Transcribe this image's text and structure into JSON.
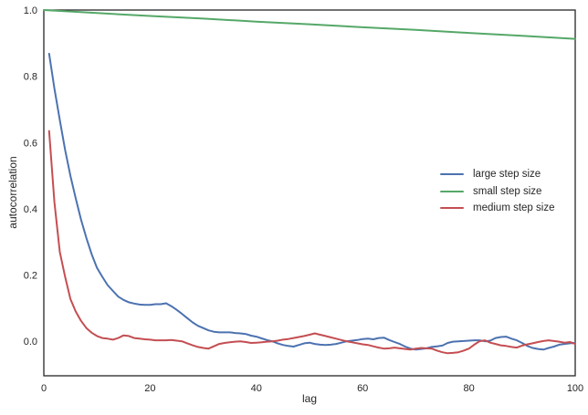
{
  "figure": {
    "background": "#ffffff",
    "axis_color": "#262626",
    "text_color": "#262626"
  },
  "chart_data": {
    "type": "line",
    "title": "",
    "xlabel": "lag",
    "ylabel": "autocorrelation",
    "xlim": [
      0,
      100
    ],
    "ylim": [
      -0.104,
      1.0
    ],
    "xticks": [
      0,
      20,
      40,
      60,
      80,
      100
    ],
    "xtick_labels": [
      "0",
      "20",
      "40",
      "60",
      "80",
      "100"
    ],
    "ytick_values": [
      0.0,
      0.2,
      0.4,
      0.6,
      0.8,
      1.0
    ],
    "ytick_labels": [
      "0.0",
      "0.2",
      "0.4",
      "0.6",
      "0.8",
      "1.0"
    ],
    "grid": false,
    "legend": {
      "position": "center-right",
      "frame": false
    },
    "series": [
      {
        "name": "large step size",
        "color": "#4C72B0",
        "x": [
          1,
          2,
          3,
          4,
          5,
          6,
          7,
          8,
          9,
          10,
          11,
          12,
          13,
          14,
          15,
          16,
          17,
          18,
          19,
          20,
          21,
          22,
          23,
          24,
          25,
          26,
          27,
          28,
          29,
          30,
          31,
          32,
          33,
          34,
          35,
          36,
          37,
          38,
          39,
          40,
          41,
          42,
          43,
          44,
          45,
          46,
          47,
          48,
          49,
          50,
          51,
          52,
          53,
          54,
          55,
          56,
          57,
          58,
          59,
          60,
          61,
          62,
          63,
          64,
          65,
          66,
          67,
          68,
          69,
          70,
          71,
          72,
          73,
          74,
          75,
          76,
          77,
          78,
          79,
          80,
          81,
          82,
          83,
          84,
          85,
          86,
          87,
          88,
          89,
          90,
          91,
          92,
          93,
          94,
          95,
          96,
          97,
          98,
          99,
          100
        ],
        "y": [
          0.868,
          0.763,
          0.668,
          0.578,
          0.5,
          0.432,
          0.368,
          0.312,
          0.263,
          0.222,
          0.195,
          0.17,
          0.152,
          0.135,
          0.125,
          0.118,
          0.114,
          0.111,
          0.11,
          0.11,
          0.112,
          0.112,
          0.115,
          0.106,
          0.095,
          0.083,
          0.07,
          0.057,
          0.047,
          0.04,
          0.033,
          0.029,
          0.027,
          0.027,
          0.027,
          0.025,
          0.024,
          0.022,
          0.017,
          0.014,
          0.009,
          0.004,
          0.0,
          -0.006,
          -0.011,
          -0.014,
          -0.016,
          -0.011,
          -0.006,
          -0.004,
          -0.008,
          -0.01,
          -0.011,
          -0.01,
          -0.008,
          -0.004,
          0.0,
          0.002,
          0.004,
          0.007,
          0.008,
          0.006,
          0.01,
          0.011,
          0.004,
          -0.002,
          -0.008,
          -0.016,
          -0.022,
          -0.025,
          -0.023,
          -0.021,
          -0.017,
          -0.015,
          -0.013,
          -0.005,
          -0.001,
          0.0,
          0.001,
          0.002,
          0.003,
          0.003,
          0.0,
          0.002,
          0.01,
          0.013,
          0.014,
          0.008,
          0.003,
          -0.005,
          -0.014,
          -0.02,
          -0.023,
          -0.025,
          -0.02,
          -0.016,
          -0.01,
          -0.008,
          -0.006,
          -0.005
        ]
      },
      {
        "name": "small step size",
        "color": "#55A868",
        "x": [
          0,
          10,
          20,
          30,
          40,
          50,
          60,
          70,
          80,
          90,
          100
        ],
        "y": [
          1.0,
          0.991,
          0.982,
          0.974,
          0.965,
          0.957,
          0.948,
          0.94,
          0.931,
          0.922,
          0.913
        ]
      },
      {
        "name": "medium step size",
        "color": "#C44E52",
        "x": [
          1,
          2,
          3,
          4,
          5,
          6,
          7,
          8,
          9,
          10,
          11,
          12,
          13,
          14,
          15,
          16,
          17,
          18,
          19,
          20,
          21,
          22,
          23,
          24,
          25,
          26,
          27,
          28,
          29,
          30,
          31,
          32,
          33,
          34,
          35,
          36,
          37,
          38,
          39,
          40,
          41,
          42,
          43,
          44,
          45,
          46,
          47,
          48,
          49,
          50,
          51,
          52,
          53,
          54,
          55,
          56,
          57,
          58,
          59,
          60,
          61,
          62,
          63,
          64,
          65,
          66,
          67,
          68,
          69,
          70,
          71,
          72,
          73,
          74,
          75,
          76,
          77,
          78,
          79,
          80,
          81,
          82,
          83,
          84,
          85,
          86,
          87,
          88,
          89,
          90,
          91,
          92,
          93,
          94,
          95,
          96,
          97,
          98,
          99,
          100
        ],
        "y": [
          0.635,
          0.42,
          0.27,
          0.195,
          0.128,
          0.09,
          0.062,
          0.04,
          0.026,
          0.016,
          0.01,
          0.008,
          0.005,
          0.01,
          0.018,
          0.016,
          0.01,
          0.008,
          0.006,
          0.005,
          0.003,
          0.003,
          0.003,
          0.004,
          0.002,
          0.0,
          -0.006,
          -0.012,
          -0.017,
          -0.02,
          -0.022,
          -0.015,
          -0.008,
          -0.005,
          -0.003,
          -0.001,
          0.0,
          -0.002,
          -0.005,
          -0.004,
          -0.003,
          -0.001,
          0.0,
          0.002,
          0.005,
          0.007,
          0.01,
          0.013,
          0.016,
          0.02,
          0.024,
          0.02,
          0.016,
          0.012,
          0.008,
          0.004,
          0.0,
          -0.003,
          -0.006,
          -0.009,
          -0.011,
          -0.015,
          -0.019,
          -0.022,
          -0.021,
          -0.019,
          -0.021,
          -0.023,
          -0.025,
          -0.022,
          -0.02,
          -0.021,
          -0.022,
          -0.028,
          -0.033,
          -0.036,
          -0.035,
          -0.033,
          -0.028,
          -0.022,
          -0.01,
          0.0,
          0.003,
          -0.004,
          -0.008,
          -0.012,
          -0.014,
          -0.017,
          -0.019,
          -0.013,
          -0.009,
          -0.006,
          -0.002,
          0.001,
          0.003,
          0.001,
          -0.001,
          -0.004,
          -0.002,
          -0.008
        ]
      }
    ]
  }
}
